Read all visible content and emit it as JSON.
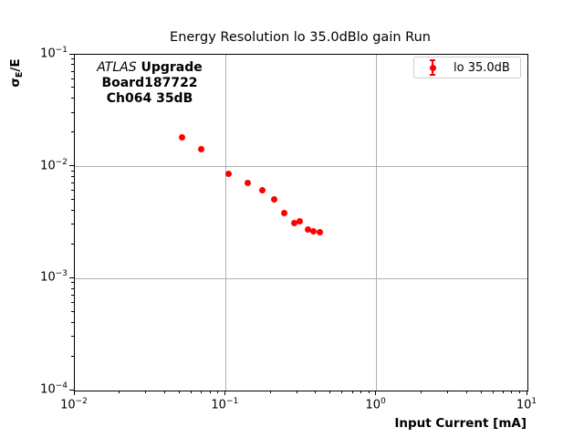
{
  "title": "Energy Resolution lo 35.0dBlo gain Run",
  "annotation": {
    "experiment": "ATLAS",
    "experiment_suffix": " Upgrade",
    "board": "Board187722",
    "channel": "Ch064 35dB"
  },
  "legend": {
    "label": "lo 35.0dB"
  },
  "axis": {
    "xlabel": "Input Current [mA]",
    "ylabel_sigma": "σ",
    "ylabel_sub": "E",
    "ylabel_rest": "/E"
  },
  "colors": {
    "series": "#ff0000",
    "grid": "#b0b0b0",
    "legend_border": "#cccccc",
    "spine": "#000000"
  },
  "chart_data": {
    "type": "scatter",
    "title": "Energy Resolution lo 35.0dBlo gain Run",
    "xlabel": "Input Current [mA]",
    "ylabel": "σ_E/E",
    "xscale": "log",
    "yscale": "log",
    "xlim": [
      0.01,
      10
    ],
    "ylim": [
      0.0001,
      0.1
    ],
    "grid": true,
    "legend_position": "upper-right",
    "x_ticks": [
      {
        "base": "10",
        "exp": "−2"
      },
      {
        "base": "10",
        "exp": "−1"
      },
      {
        "base": "10",
        "exp": "0"
      },
      {
        "base": "10",
        "exp": "1"
      }
    ],
    "y_ticks": [
      {
        "base": "10",
        "exp": "−1"
      },
      {
        "base": "10",
        "exp": "−2"
      },
      {
        "base": "10",
        "exp": "−3"
      },
      {
        "base": "10",
        "exp": "−4"
      }
    ],
    "series": [
      {
        "name": "lo 35.0dB",
        "color": "#ff0000",
        "marker": "circle-with-errorbar",
        "x": [
          0.052,
          0.07,
          0.106,
          0.141,
          0.177,
          0.213,
          0.247,
          0.287,
          0.316,
          0.358,
          0.388,
          0.425
        ],
        "y": [
          0.0181,
          0.0141,
          0.0084,
          0.007,
          0.006,
          0.005,
          0.0038,
          0.0031,
          0.0032,
          0.00268,
          0.00262,
          0.00257
        ]
      }
    ]
  }
}
